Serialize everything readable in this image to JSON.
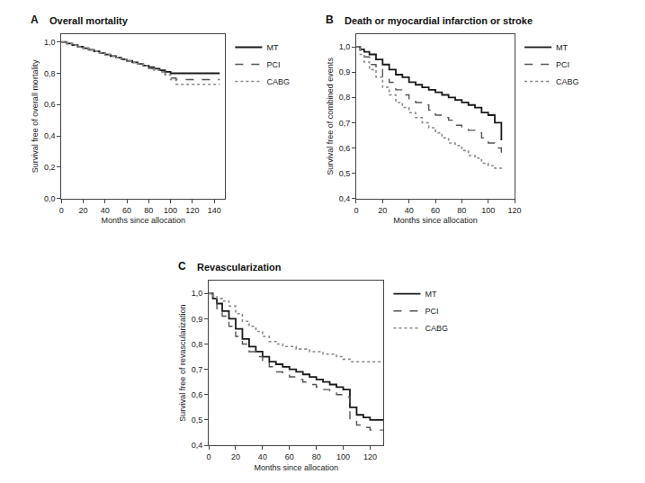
{
  "chart_data": [
    {
      "type": "step",
      "title": "Overall mortality",
      "annotations": [
        "A"
      ],
      "x_label": "Months since allocation",
      "y_label": "Survival free of overall mortality",
      "xlim": [
        0,
        150
      ],
      "ylim": [
        0.0,
        1.05
      ],
      "xticks": [
        0,
        20,
        40,
        60,
        80,
        100,
        120,
        140
      ],
      "yticks": [
        {
          "value": 0.0,
          "label": "0,0"
        },
        {
          "value": 0.2,
          "label": "0,2"
        },
        {
          "value": 0.4,
          "label": "0,4"
        },
        {
          "value": 0.6,
          "label": "0,6"
        },
        {
          "value": 0.8,
          "label": "0,8"
        },
        {
          "value": 1.0,
          "label": "1,0"
        }
      ],
      "grid": false,
      "legend": "right",
      "series": [
        {
          "name": "MT",
          "color": "#1a1a1a",
          "line_style": "solid",
          "x": [
            0,
            5,
            10,
            15,
            20,
            25,
            30,
            35,
            40,
            45,
            50,
            55,
            60,
            65,
            70,
            75,
            80,
            85,
            90,
            95,
            100,
            105,
            110,
            115,
            120,
            125,
            130,
            135,
            140,
            145
          ],
          "values": [
            1.0,
            0.99,
            0.98,
            0.97,
            0.96,
            0.95,
            0.94,
            0.93,
            0.92,
            0.91,
            0.9,
            0.89,
            0.88,
            0.87,
            0.86,
            0.85,
            0.84,
            0.83,
            0.82,
            0.81,
            0.8,
            0.8,
            0.8,
            0.8,
            0.8,
            0.8,
            0.8,
            0.8,
            0.8,
            0.8
          ]
        },
        {
          "name": "PCI",
          "color": "#555555",
          "line_style": "dashed",
          "x": [
            0,
            5,
            10,
            15,
            20,
            25,
            30,
            35,
            40,
            45,
            50,
            55,
            60,
            65,
            70,
            75,
            80,
            85,
            90,
            95,
            100,
            105,
            110,
            115,
            120,
            125,
            130,
            135,
            140,
            145
          ],
          "values": [
            1.0,
            0.99,
            0.98,
            0.97,
            0.96,
            0.95,
            0.94,
            0.93,
            0.92,
            0.91,
            0.9,
            0.89,
            0.88,
            0.87,
            0.86,
            0.85,
            0.83,
            0.82,
            0.81,
            0.79,
            0.77,
            0.76,
            0.76,
            0.76,
            0.76,
            0.76,
            0.76,
            0.76,
            0.76,
            0.76
          ]
        },
        {
          "name": "CABG",
          "color": "#888888",
          "line_style": "dotted",
          "x": [
            0,
            5,
            10,
            15,
            20,
            25,
            30,
            35,
            40,
            45,
            50,
            55,
            60,
            65,
            70,
            75,
            80,
            85,
            90,
            95,
            100,
            105,
            110,
            115,
            120,
            125,
            130,
            135,
            140,
            145
          ],
          "values": [
            1.0,
            0.99,
            0.98,
            0.97,
            0.96,
            0.95,
            0.94,
            0.93,
            0.92,
            0.91,
            0.9,
            0.89,
            0.88,
            0.87,
            0.86,
            0.85,
            0.83,
            0.82,
            0.81,
            0.79,
            0.76,
            0.73,
            0.73,
            0.73,
            0.73,
            0.73,
            0.73,
            0.73,
            0.73,
            0.73
          ]
        }
      ]
    },
    {
      "type": "step",
      "title": "Death or myocardial infarction or stroke",
      "annotations": [
        "B"
      ],
      "x_label": "Months since allocation",
      "y_label": "Survival free of combined events",
      "xlim": [
        0,
        120
      ],
      "ylim": [
        0.4,
        1.05
      ],
      "xticks": [
        0,
        20,
        40,
        60,
        80,
        100,
        120
      ],
      "yticks": [
        {
          "value": 0.4,
          "label": "0,4"
        },
        {
          "value": 0.5,
          "label": "0,5"
        },
        {
          "value": 0.6,
          "label": "0,6"
        },
        {
          "value": 0.7,
          "label": "0,7"
        },
        {
          "value": 0.8,
          "label": "0,8"
        },
        {
          "value": 0.9,
          "label": "0,9"
        },
        {
          "value": 1.0,
          "label": "1,0"
        }
      ],
      "grid": false,
      "legend": "right",
      "series": [
        {
          "name": "MT",
          "color": "#1a1a1a",
          "line_style": "solid",
          "x": [
            0,
            3,
            6,
            10,
            15,
            20,
            25,
            30,
            35,
            40,
            45,
            50,
            55,
            60,
            65,
            70,
            75,
            80,
            85,
            90,
            95,
            100,
            105,
            110
          ],
          "values": [
            1.0,
            0.99,
            0.98,
            0.97,
            0.95,
            0.93,
            0.91,
            0.89,
            0.88,
            0.86,
            0.85,
            0.84,
            0.83,
            0.82,
            0.81,
            0.8,
            0.79,
            0.78,
            0.77,
            0.76,
            0.74,
            0.73,
            0.7,
            0.63
          ]
        },
        {
          "name": "PCI",
          "color": "#555555",
          "line_style": "dashed",
          "x": [
            0,
            3,
            6,
            10,
            15,
            20,
            25,
            30,
            35,
            40,
            45,
            50,
            55,
            60,
            65,
            70,
            75,
            80,
            85,
            90,
            95,
            100,
            105,
            110
          ],
          "values": [
            1.0,
            0.98,
            0.96,
            0.93,
            0.91,
            0.88,
            0.86,
            0.83,
            0.81,
            0.79,
            0.78,
            0.77,
            0.75,
            0.73,
            0.72,
            0.71,
            0.69,
            0.68,
            0.67,
            0.66,
            0.64,
            0.62,
            0.6,
            0.57
          ]
        },
        {
          "name": "CABG",
          "color": "#888888",
          "line_style": "dotted",
          "x": [
            0,
            3,
            6,
            10,
            15,
            20,
            25,
            30,
            35,
            40,
            45,
            50,
            55,
            60,
            65,
            70,
            75,
            80,
            85,
            90,
            95,
            100,
            105,
            110
          ],
          "values": [
            1.0,
            0.97,
            0.94,
            0.91,
            0.88,
            0.84,
            0.81,
            0.78,
            0.76,
            0.74,
            0.72,
            0.7,
            0.68,
            0.66,
            0.64,
            0.62,
            0.61,
            0.59,
            0.57,
            0.56,
            0.54,
            0.53,
            0.52,
            0.51
          ]
        }
      ]
    },
    {
      "type": "step",
      "title": "Revascularization",
      "annotations": [
        "C"
      ],
      "x_label": "Months since allocation",
      "y_label": "Survival free of revascularization",
      "xlim": [
        0,
        130
      ],
      "ylim": [
        0.4,
        1.05
      ],
      "xticks": [
        0,
        20,
        40,
        60,
        80,
        100,
        120
      ],
      "yticks": [
        {
          "value": 0.4,
          "label": "0,4"
        },
        {
          "value": 0.5,
          "label": "0,5"
        },
        {
          "value": 0.6,
          "label": "0,6"
        },
        {
          "value": 0.7,
          "label": "0,7"
        },
        {
          "value": 0.8,
          "label": "0,8"
        },
        {
          "value": 0.9,
          "label": "0,9"
        },
        {
          "value": 1.0,
          "label": "1,0"
        }
      ],
      "grid": false,
      "legend": "right",
      "series": [
        {
          "name": "MT",
          "color": "#1a1a1a",
          "line_style": "solid",
          "x": [
            0,
            3,
            6,
            10,
            15,
            20,
            25,
            30,
            35,
            40,
            45,
            50,
            55,
            60,
            65,
            70,
            75,
            80,
            85,
            90,
            95,
            100,
            105,
            110,
            115,
            120,
            125,
            130
          ],
          "values": [
            1.0,
            0.98,
            0.96,
            0.93,
            0.9,
            0.86,
            0.82,
            0.79,
            0.77,
            0.75,
            0.73,
            0.72,
            0.71,
            0.7,
            0.69,
            0.68,
            0.67,
            0.66,
            0.65,
            0.64,
            0.63,
            0.62,
            0.55,
            0.52,
            0.51,
            0.5,
            0.5,
            0.5
          ]
        },
        {
          "name": "PCI",
          "color": "#555555",
          "line_style": "dashed",
          "x": [
            0,
            3,
            6,
            10,
            15,
            20,
            25,
            30,
            35,
            40,
            45,
            50,
            55,
            60,
            65,
            70,
            75,
            80,
            85,
            90,
            95,
            100,
            105,
            110,
            115,
            120,
            125,
            130
          ],
          "values": [
            1.0,
            0.97,
            0.94,
            0.91,
            0.87,
            0.83,
            0.8,
            0.77,
            0.75,
            0.73,
            0.71,
            0.69,
            0.68,
            0.67,
            0.66,
            0.65,
            0.64,
            0.63,
            0.62,
            0.61,
            0.6,
            0.59,
            0.5,
            0.48,
            0.47,
            0.46,
            0.46,
            0.46
          ]
        },
        {
          "name": "CABG",
          "color": "#888888",
          "line_style": "dotted",
          "x": [
            0,
            3,
            6,
            10,
            15,
            20,
            25,
            30,
            35,
            40,
            45,
            50,
            55,
            60,
            65,
            70,
            75,
            80,
            85,
            90,
            95,
            100,
            105,
            110,
            115,
            120,
            125,
            130
          ],
          "values": [
            1.0,
            0.99,
            0.98,
            0.97,
            0.95,
            0.92,
            0.89,
            0.87,
            0.85,
            0.83,
            0.81,
            0.8,
            0.79,
            0.79,
            0.78,
            0.78,
            0.77,
            0.77,
            0.76,
            0.76,
            0.75,
            0.74,
            0.73,
            0.73,
            0.73,
            0.73,
            0.73,
            0.73
          ]
        }
      ]
    }
  ]
}
